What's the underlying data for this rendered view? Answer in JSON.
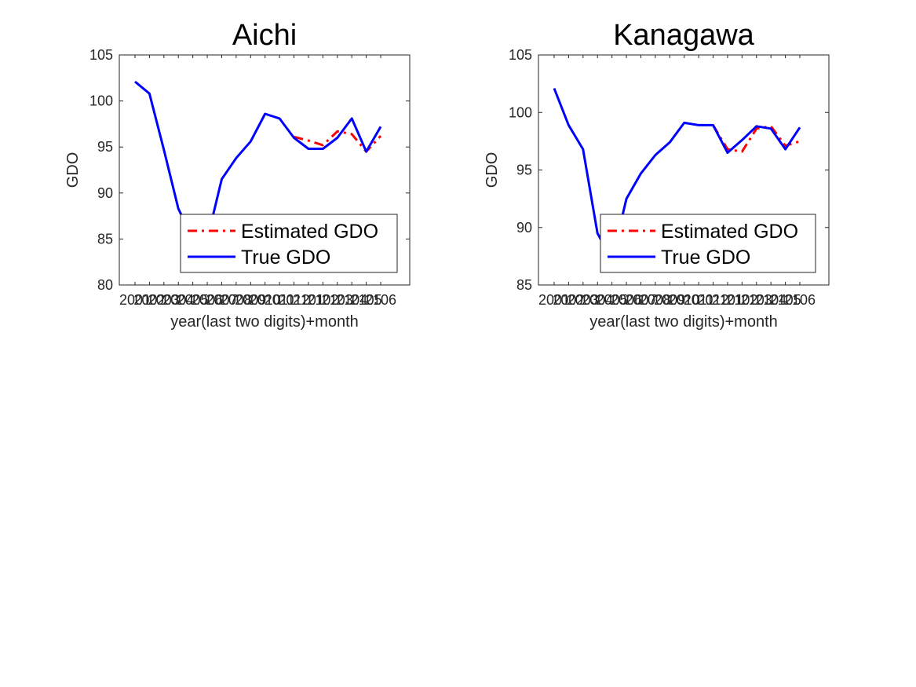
{
  "chart_data": [
    {
      "type": "line",
      "title": "Aichi",
      "xlabel": "year(last two digits)+month",
      "ylabel": "GDO",
      "ylim": [
        80,
        105
      ],
      "yticks": [
        80,
        85,
        90,
        95,
        100,
        105
      ],
      "categories": [
        "2001",
        "2002",
        "2003",
        "2004",
        "2005",
        "2006",
        "2007",
        "2008",
        "2009",
        "2010",
        "2011",
        "2012",
        "2101",
        "2102",
        "2103",
        "2104",
        "2105",
        "2106"
      ],
      "grid": false,
      "legend_position": "bottom-right",
      "series": [
        {
          "name": "Estimated GDO",
          "color": "#ff0000",
          "style": "dashdot",
          "values": [
            null,
            null,
            null,
            null,
            null,
            null,
            null,
            null,
            null,
            null,
            null,
            96.1,
            95.7,
            95.2,
            96.7,
            96.4,
            94.5,
            96.2
          ]
        },
        {
          "name": "True GDO",
          "color": "#0000ff",
          "style": "solid",
          "values": [
            102.1,
            100.8,
            94.7,
            88.3,
            85.0,
            85.0,
            91.5,
            93.8,
            95.6,
            98.6,
            98.1,
            96.0,
            94.8,
            94.8,
            96.0,
            98.1,
            94.5,
            97.2
          ]
        }
      ]
    },
    {
      "type": "line",
      "title": "Kanagawa",
      "xlabel": "year(last two digits)+month",
      "ylabel": "GDO",
      "ylim": [
        85,
        105
      ],
      "yticks": [
        85,
        90,
        95,
        100,
        105
      ],
      "categories": [
        "2001",
        "2002",
        "2003",
        "2004",
        "2005",
        "2006",
        "2007",
        "2008",
        "2009",
        "2010",
        "2011",
        "2012",
        "2101",
        "2102",
        "2103",
        "2104",
        "2105",
        "2106"
      ],
      "grid": false,
      "legend_position": "bottom-right",
      "series": [
        {
          "name": "Estimated GDO",
          "color": "#ff0000",
          "style": "dashdot",
          "values": [
            null,
            null,
            null,
            null,
            null,
            null,
            null,
            null,
            null,
            null,
            null,
            98.9,
            96.8,
            96.6,
            98.6,
            98.8,
            97.1,
            97.5
          ]
        },
        {
          "name": "True GDO",
          "color": "#0000ff",
          "style": "solid",
          "values": [
            102.1,
            98.9,
            96.8,
            89.5,
            87.2,
            92.5,
            94.7,
            96.3,
            97.4,
            99.1,
            98.9,
            98.9,
            96.5,
            97.6,
            98.8,
            98.6,
            96.8,
            98.7
          ]
        }
      ]
    }
  ]
}
